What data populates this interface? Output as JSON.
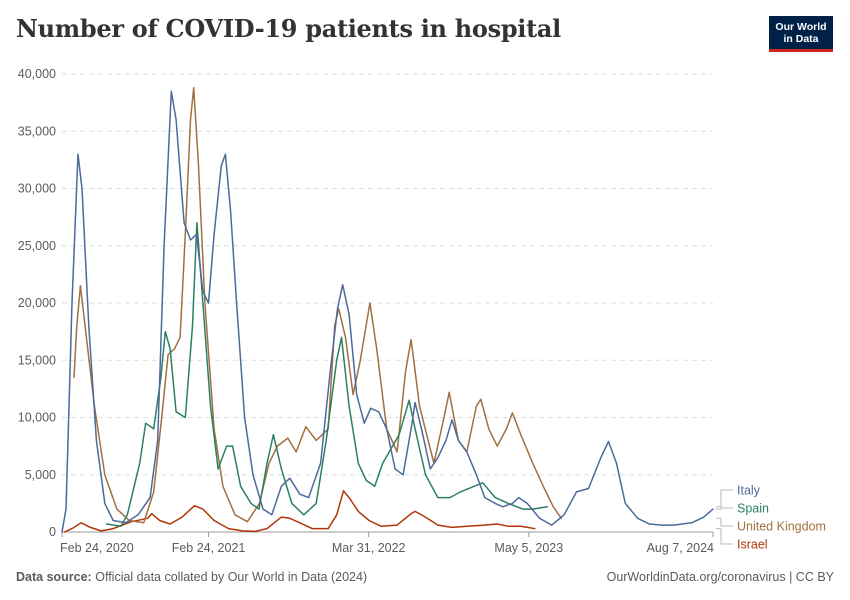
{
  "title": "Number of COVID-19 patients in hospital",
  "logo": {
    "line1": "Our World",
    "line2": "in Data"
  },
  "footer": {
    "source_label": "Data source:",
    "source_text": "Official data collated by Our World in Data (2024)",
    "right_text": "OurWorldinData.org/coronavirus | CC BY"
  },
  "chart_data": {
    "type": "line",
    "x_axis_type": "date",
    "xlim": [
      "2020-02-24",
      "2024-08-07"
    ],
    "ylim": [
      0,
      40000
    ],
    "yticks": [
      0,
      5000,
      10000,
      15000,
      20000,
      25000,
      30000,
      35000,
      40000
    ],
    "ytick_labels": [
      "0",
      "5,000",
      "10,000",
      "15,000",
      "20,000",
      "25,000",
      "30,000",
      "35,000",
      "40,000"
    ],
    "xticks": [
      "2020-02-24",
      "2021-02-24",
      "2022-03-31",
      "2023-05-05",
      "2024-08-07"
    ],
    "xtick_labels": [
      "Feb 24, 2020",
      "Feb 24, 2021",
      "Mar 31, 2022",
      "May 5, 2023",
      "Aug 7, 2024"
    ],
    "grid": "horizontal dashed",
    "legend": "right, end of lines",
    "series": [
      {
        "name": "Italy",
        "color": "#4c6a9c",
        "points": [
          [
            "2020-02-24",
            0
          ],
          [
            "2020-03-05",
            2000
          ],
          [
            "2020-03-20",
            20000
          ],
          [
            "2020-04-04",
            33000
          ],
          [
            "2020-04-14",
            30000
          ],
          [
            "2020-05-01",
            18000
          ],
          [
            "2020-05-20",
            8000
          ],
          [
            "2020-06-10",
            2500
          ],
          [
            "2020-07-01",
            1000
          ],
          [
            "2020-08-01",
            800
          ],
          [
            "2020-09-01",
            1500
          ],
          [
            "2020-10-01",
            3000
          ],
          [
            "2020-10-20",
            8000
          ],
          [
            "2020-11-05",
            25000
          ],
          [
            "2020-11-23",
            38500
          ],
          [
            "2020-12-05",
            36000
          ],
          [
            "2020-12-25",
            27000
          ],
          [
            "2021-01-10",
            25500
          ],
          [
            "2021-01-25",
            26000
          ],
          [
            "2021-02-10",
            21000
          ],
          [
            "2021-02-24",
            20000
          ],
          [
            "2021-03-10",
            26000
          ],
          [
            "2021-03-28",
            32000
          ],
          [
            "2021-04-07",
            33000
          ],
          [
            "2021-04-20",
            28000
          ],
          [
            "2021-05-05",
            20000
          ],
          [
            "2021-05-25",
            10000
          ],
          [
            "2021-06-15",
            5000
          ],
          [
            "2021-07-10",
            2000
          ],
          [
            "2021-08-01",
            1500
          ],
          [
            "2021-08-25",
            4000
          ],
          [
            "2021-09-15",
            4700
          ],
          [
            "2021-10-10",
            3300
          ],
          [
            "2021-11-01",
            3000
          ],
          [
            "2021-12-01",
            6000
          ],
          [
            "2021-12-25",
            14000
          ],
          [
            "2022-01-12",
            19500
          ],
          [
            "2022-01-25",
            21600
          ],
          [
            "2022-02-10",
            19000
          ],
          [
            "2022-03-01",
            12000
          ],
          [
            "2022-03-20",
            9500
          ],
          [
            "2022-04-05",
            10800
          ],
          [
            "2022-04-25",
            10500
          ],
          [
            "2022-05-15",
            9000
          ],
          [
            "2022-06-05",
            5500
          ],
          [
            "2022-06-25",
            5000
          ],
          [
            "2022-07-15",
            9000
          ],
          [
            "2022-07-25",
            11300
          ],
          [
            "2022-08-10",
            9000
          ],
          [
            "2022-09-01",
            5500
          ],
          [
            "2022-09-20",
            6500
          ],
          [
            "2022-10-10",
            8000
          ],
          [
            "2022-10-25",
            9800
          ],
          [
            "2022-11-10",
            8000
          ],
          [
            "2022-12-01",
            7000
          ],
          [
            "2022-12-25",
            5000
          ],
          [
            "2023-01-15",
            3000
          ],
          [
            "2023-02-10",
            2500
          ],
          [
            "2023-03-01",
            2200
          ],
          [
            "2023-03-25",
            2500
          ],
          [
            "2023-04-10",
            3000
          ],
          [
            "2023-05-01",
            2500
          ],
          [
            "2023-06-01",
            1200
          ],
          [
            "2023-07-01",
            600
          ],
          [
            "2023-08-01",
            1500
          ],
          [
            "2023-09-01",
            3500
          ],
          [
            "2023-10-01",
            3800
          ],
          [
            "2023-11-01",
            6500
          ],
          [
            "2023-11-20",
            7900
          ],
          [
            "2023-12-10",
            6000
          ],
          [
            "2024-01-01",
            2500
          ],
          [
            "2024-02-01",
            1200
          ],
          [
            "2024-03-01",
            700
          ],
          [
            "2024-04-01",
            600
          ],
          [
            "2024-05-01",
            600
          ],
          [
            "2024-06-15",
            800
          ],
          [
            "2024-07-15",
            1300
          ],
          [
            "2024-08-07",
            2000
          ]
        ]
      },
      {
        "name": "Spain",
        "color": "#2b8064",
        "points": [
          [
            "2020-06-15",
            700
          ],
          [
            "2020-07-20",
            500
          ],
          [
            "2020-08-05",
            1500
          ],
          [
            "2020-09-05",
            6000
          ],
          [
            "2020-09-20",
            9500
          ],
          [
            "2020-10-10",
            9000
          ],
          [
            "2020-10-28",
            13500
          ],
          [
            "2020-11-08",
            17500
          ],
          [
            "2020-11-20",
            16000
          ],
          [
            "2020-12-05",
            10500
          ],
          [
            "2020-12-28",
            10000
          ],
          [
            "2021-01-15",
            18000
          ],
          [
            "2021-01-26",
            27000
          ],
          [
            "2021-02-10",
            20000
          ],
          [
            "2021-03-01",
            11000
          ],
          [
            "2021-03-20",
            5500
          ],
          [
            "2021-04-10",
            7500
          ],
          [
            "2021-04-25",
            7500
          ],
          [
            "2021-05-15",
            4000
          ],
          [
            "2021-06-10",
            2500
          ],
          [
            "2021-06-30",
            2000
          ],
          [
            "2021-07-20",
            6000
          ],
          [
            "2021-08-05",
            8500
          ],
          [
            "2021-08-25",
            5500
          ],
          [
            "2021-09-20",
            2500
          ],
          [
            "2021-10-20",
            1500
          ],
          [
            "2021-11-20",
            2500
          ],
          [
            "2021-12-15",
            8000
          ],
          [
            "2022-01-10",
            15000
          ],
          [
            "2022-01-22",
            17000
          ],
          [
            "2022-02-10",
            11000
          ],
          [
            "2022-03-05",
            6000
          ],
          [
            "2022-03-25",
            4500
          ],
          [
            "2022-04-15",
            4000
          ],
          [
            "2022-05-05",
            6000
          ],
          [
            "2022-06-15",
            8500
          ],
          [
            "2022-07-10",
            11500
          ],
          [
            "2022-07-25",
            9000
          ],
          [
            "2022-08-20",
            5000
          ],
          [
            "2022-09-20",
            3000
          ],
          [
            "2022-10-20",
            3000
          ],
          [
            "2022-11-15",
            3500
          ],
          [
            "2022-12-20",
            4000
          ],
          [
            "2023-01-10",
            4300
          ],
          [
            "2023-02-10",
            3000
          ],
          [
            "2023-03-15",
            2500
          ],
          [
            "2023-04-20",
            2000
          ],
          [
            "2023-05-15",
            2000
          ],
          [
            "2023-06-20",
            2200
          ]
        ]
      },
      {
        "name": "United Kingdom",
        "color": "#a2703f",
        "points": [
          [
            "2020-03-25",
            13500
          ],
          [
            "2020-04-01",
            18000
          ],
          [
            "2020-04-10",
            21500
          ],
          [
            "2020-04-25",
            17000
          ],
          [
            "2020-05-15",
            11000
          ],
          [
            "2020-06-10",
            5000
          ],
          [
            "2020-07-10",
            2000
          ],
          [
            "2020-08-10",
            1000
          ],
          [
            "2020-09-15",
            800
          ],
          [
            "2020-10-10",
            3500
          ],
          [
            "2020-10-30",
            10000
          ],
          [
            "2020-11-15",
            15500
          ],
          [
            "2020-12-01",
            16000
          ],
          [
            "2020-12-15",
            17000
          ],
          [
            "2020-12-28",
            26000
          ],
          [
            "2021-01-10",
            36000
          ],
          [
            "2021-01-18",
            38800
          ],
          [
            "2021-01-30",
            32000
          ],
          [
            "2021-02-15",
            20000
          ],
          [
            "2021-03-10",
            9000
          ],
          [
            "2021-04-01",
            4000
          ],
          [
            "2021-05-01",
            1500
          ],
          [
            "2021-06-01",
            900
          ],
          [
            "2021-07-01",
            2500
          ],
          [
            "2021-07-25",
            6000
          ],
          [
            "2021-08-15",
            7500
          ],
          [
            "2021-09-10",
            8200
          ],
          [
            "2021-10-01",
            7000
          ],
          [
            "2021-10-25",
            9200
          ],
          [
            "2021-11-20",
            8000
          ],
          [
            "2021-12-20",
            9000
          ],
          [
            "2022-01-05",
            18000
          ],
          [
            "2022-01-15",
            19500
          ],
          [
            "2022-02-01",
            17000
          ],
          [
            "2022-02-20",
            12000
          ],
          [
            "2022-03-10",
            15000
          ],
          [
            "2022-04-03",
            20000
          ],
          [
            "2022-04-20",
            16000
          ],
          [
            "2022-05-15",
            9000
          ],
          [
            "2022-06-10",
            7000
          ],
          [
            "2022-07-01",
            14000
          ],
          [
            "2022-07-15",
            16800
          ],
          [
            "2022-08-05",
            11000
          ],
          [
            "2022-09-10",
            6000
          ],
          [
            "2022-10-05",
            10000
          ],
          [
            "2022-10-18",
            12200
          ],
          [
            "2022-11-10",
            8000
          ],
          [
            "2022-12-01",
            7000
          ],
          [
            "2022-12-25",
            11000
          ],
          [
            "2023-01-05",
            11600
          ],
          [
            "2023-01-25",
            9000
          ],
          [
            "2023-02-15",
            7500
          ],
          [
            "2023-03-10",
            9000
          ],
          [
            "2023-03-25",
            10400
          ],
          [
            "2023-04-15",
            8500
          ],
          [
            "2023-05-15",
            6000
          ],
          [
            "2023-06-10",
            4000
          ],
          [
            "2023-07-05",
            2200
          ],
          [
            "2023-07-25",
            1200
          ]
        ]
      },
      {
        "name": "Israel",
        "color": "#b13507",
        "points": [
          [
            "2020-03-01",
            0
          ],
          [
            "2020-03-20",
            300
          ],
          [
            "2020-04-12",
            800
          ],
          [
            "2020-05-05",
            400
          ],
          [
            "2020-06-01",
            100
          ],
          [
            "2020-07-01",
            300
          ],
          [
            "2020-08-15",
            900
          ],
          [
            "2020-09-25",
            1200
          ],
          [
            "2020-10-05",
            1600
          ],
          [
            "2020-10-25",
            1000
          ],
          [
            "2020-11-20",
            700
          ],
          [
            "2020-12-20",
            1300
          ],
          [
            "2021-01-20",
            2300
          ],
          [
            "2021-02-10",
            2000
          ],
          [
            "2021-03-10",
            1000
          ],
          [
            "2021-04-15",
            300
          ],
          [
            "2021-05-20",
            100
          ],
          [
            "2021-06-20",
            50
          ],
          [
            "2021-07-20",
            300
          ],
          [
            "2021-08-25",
            1300
          ],
          [
            "2021-09-15",
            1200
          ],
          [
            "2021-10-10",
            800
          ],
          [
            "2021-11-10",
            300
          ],
          [
            "2021-12-20",
            300
          ],
          [
            "2022-01-10",
            1500
          ],
          [
            "2022-01-27",
            3600
          ],
          [
            "2022-02-10",
            3000
          ],
          [
            "2022-03-05",
            1800
          ],
          [
            "2022-04-01",
            1000
          ],
          [
            "2022-05-01",
            500
          ],
          [
            "2022-06-10",
            600
          ],
          [
            "2022-07-15",
            1600
          ],
          [
            "2022-07-25",
            1800
          ],
          [
            "2022-08-20",
            1300
          ],
          [
            "2022-09-20",
            600
          ],
          [
            "2022-10-25",
            400
          ],
          [
            "2022-12-01",
            500
          ],
          [
            "2023-01-15",
            600
          ],
          [
            "2023-02-15",
            700
          ],
          [
            "2023-03-15",
            500
          ],
          [
            "2023-04-15",
            500
          ],
          [
            "2023-05-20",
            300
          ]
        ]
      }
    ]
  }
}
